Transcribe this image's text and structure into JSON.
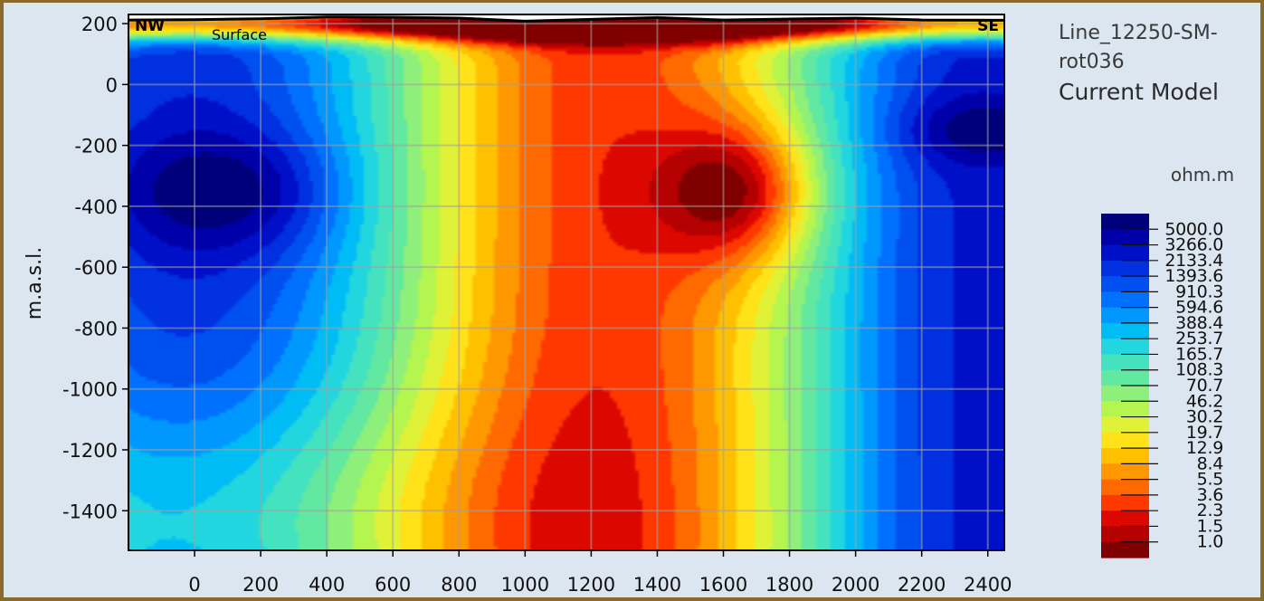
{
  "chart_data": {
    "type": "heatmap",
    "subtype": "resistivity contour section",
    "title_lines": [
      "Line_12250-SM-",
      "rot036"
    ],
    "subtitle": "Current Model",
    "ylabel": "m.a.s.l.",
    "xlabel": "",
    "x_ticks": [
      "0",
      "200",
      "400",
      "600",
      "800",
      "1000",
      "1200",
      "1400",
      "1600",
      "1800",
      "2000",
      "2200",
      "2400"
    ],
    "y_ticks": [
      "200",
      "0",
      "-200",
      "-400",
      "-600",
      "-800",
      "-1000",
      "-1200",
      "-1400"
    ],
    "xlim": [
      -200,
      2450
    ],
    "ylim": [
      -1530,
      230
    ],
    "grid": true,
    "top_left_label": "NW",
    "top_right_label": "SE",
    "surface_label": "Surface",
    "colorbar": {
      "unit": "ohm.m",
      "scale": "log",
      "labels": [
        "5000.0",
        "3266.0",
        "2133.4",
        "1393.6",
        "910.3",
        "594.6",
        "388.4",
        "253.7",
        "165.7",
        "108.3",
        "70.7",
        "46.2",
        "30.2",
        "19.7",
        "12.9",
        "8.4",
        "5.5",
        "3.6",
        "2.3",
        "1.5",
        "1.0"
      ],
      "colors": [
        "#00007a",
        "#0000a8",
        "#0010c8",
        "#0030e0",
        "#0050f0",
        "#0070ff",
        "#0098ff",
        "#00bcf5",
        "#22d6e0",
        "#45e2c0",
        "#62e8a0",
        "#8ef07a",
        "#b4f550",
        "#e0f238",
        "#ffe21a",
        "#ffc000",
        "#ff9800",
        "#ff6a00",
        "#ff3800",
        "#dc0800",
        "#b40000",
        "#800000"
      ]
    },
    "surface_elevation": {
      "x": [
        -200,
        0,
        200,
        400,
        600,
        800,
        1000,
        1200,
        1400,
        1600,
        1800,
        2000,
        2200,
        2450
      ],
      "y": [
        212,
        213,
        216,
        222,
        221,
        218,
        208,
        214,
        220,
        212,
        215,
        218,
        212,
        211
      ]
    },
    "anomalies": [
      {
        "x": 1580,
        "y": -350,
        "rho": 1.0,
        "rx": 260,
        "ry": 250
      },
      {
        "x": 1560,
        "y": 195,
        "rho": 1.3,
        "rx": 130,
        "ry": 55
      },
      {
        "x": 50,
        "y": -350,
        "rho": 5000,
        "rx": 330,
        "ry": 230
      },
      {
        "x": 2400,
        "y": -150,
        "rho": 5000,
        "rx": 230,
        "ry": 120
      }
    ]
  }
}
